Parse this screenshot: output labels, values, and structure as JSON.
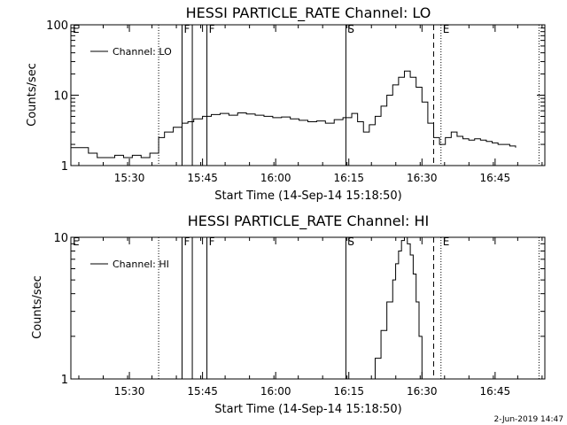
{
  "footer": {
    "date_stamp": "2-Jun-2019 14:47"
  },
  "chart_data": [
    {
      "type": "line",
      "title": "HESSI PARTICLE_RATE Channel: LO",
      "xlabel": "Start Time (14-Sep-14 15:18:50)",
      "ylabel": "Counts/sec",
      "yscale": "log",
      "ylim": [
        1,
        100
      ],
      "y_ticks": [
        {
          "value": 1,
          "label": "1"
        },
        {
          "value": 10,
          "label": "10"
        },
        {
          "value": 100,
          "label": "100"
        }
      ],
      "xlim_minutes": [
        15.3,
        16.92
      ],
      "x_ticks": [
        {
          "value": 15.5,
          "label": "15:30"
        },
        {
          "value": 15.75,
          "label": "15:45"
        },
        {
          "value": 16.0,
          "label": "16:00"
        },
        {
          "value": 16.25,
          "label": "16:15"
        },
        {
          "value": 16.5,
          "label": "16:30"
        },
        {
          "value": 16.75,
          "label": "16:45"
        }
      ],
      "legend": "Channel: LO",
      "markers": [
        {
          "label": "E",
          "time": 15.3,
          "style": "none"
        },
        {
          "label": "",
          "time": 15.6,
          "style": "dotted"
        },
        {
          "label": "F",
          "time": 15.68,
          "style": "solid"
        },
        {
          "label": "",
          "time": 15.715,
          "style": "solid"
        },
        {
          "label": "F",
          "time": 15.765,
          "style": "solid"
        },
        {
          "label": "S",
          "time": 16.24,
          "style": "solid"
        },
        {
          "label": "",
          "time": 16.54,
          "style": "dashed"
        },
        {
          "label": "E",
          "time": 16.565,
          "style": "dotted"
        },
        {
          "label": "",
          "time": 16.9,
          "style": "dotted"
        }
      ],
      "series": [
        {
          "name": "Channel: LO",
          "x": [
            15.3,
            15.33,
            15.36,
            15.39,
            15.42,
            15.45,
            15.48,
            15.51,
            15.54,
            15.57,
            15.6,
            15.62,
            15.65,
            15.68,
            15.7,
            15.72,
            15.75,
            15.78,
            15.81,
            15.84,
            15.87,
            15.9,
            15.93,
            15.96,
            15.99,
            16.02,
            16.05,
            16.08,
            16.11,
            16.14,
            16.17,
            16.2,
            16.23,
            16.26,
            16.28,
            16.3,
            16.32,
            16.34,
            16.36,
            16.38,
            16.4,
            16.42,
            16.44,
            16.46,
            16.48,
            16.5,
            16.52,
            16.54,
            16.56,
            16.58,
            16.6,
            16.62,
            16.64,
            16.66,
            16.68,
            16.7,
            16.72,
            16.74,
            16.76,
            16.78,
            16.8,
            16.82
          ],
          "values": [
            1.8,
            1.8,
            1.5,
            1.3,
            1.3,
            1.4,
            1.3,
            1.4,
            1.3,
            1.5,
            2.5,
            3.0,
            3.5,
            4.0,
            4.2,
            4.6,
            5.0,
            5.3,
            5.5,
            5.2,
            5.6,
            5.4,
            5.2,
            5.0,
            4.8,
            4.9,
            4.6,
            4.4,
            4.2,
            4.3,
            4.0,
            4.5,
            4.8,
            5.5,
            4.2,
            3.0,
            3.8,
            5.0,
            7.0,
            10.0,
            14.0,
            18.0,
            22.0,
            18.0,
            13.0,
            8.0,
            4.0,
            2.5,
            2.0,
            2.5,
            3.0,
            2.6,
            2.4,
            2.3,
            2.4,
            2.3,
            2.2,
            2.1,
            2.0,
            2.0,
            1.9,
            1.8
          ]
        }
      ]
    },
    {
      "type": "line",
      "title": "HESSI PARTICLE_RATE Channel: HI",
      "xlabel": "Start Time (14-Sep-14 15:18:50)",
      "ylabel": "Counts/sec",
      "yscale": "log",
      "ylim": [
        1,
        10
      ],
      "y_ticks": [
        {
          "value": 1,
          "label": "1"
        },
        {
          "value": 10,
          "label": "10"
        }
      ],
      "xlim_minutes": [
        15.3,
        16.92
      ],
      "x_ticks": [
        {
          "value": 15.5,
          "label": "15:30"
        },
        {
          "value": 15.75,
          "label": "15:45"
        },
        {
          "value": 16.0,
          "label": "16:00"
        },
        {
          "value": 16.25,
          "label": "16:15"
        },
        {
          "value": 16.5,
          "label": "16:30"
        },
        {
          "value": 16.75,
          "label": "16:45"
        }
      ],
      "legend": "Channel: HI",
      "markers": [
        {
          "label": "E",
          "time": 15.3,
          "style": "none"
        },
        {
          "label": "",
          "time": 15.6,
          "style": "dotted"
        },
        {
          "label": "F",
          "time": 15.68,
          "style": "solid"
        },
        {
          "label": "",
          "time": 15.715,
          "style": "solid"
        },
        {
          "label": "F",
          "time": 15.765,
          "style": "solid"
        },
        {
          "label": "S",
          "time": 16.24,
          "style": "solid"
        },
        {
          "label": "",
          "time": 16.54,
          "style": "dashed"
        },
        {
          "label": "E",
          "time": 16.565,
          "style": "dotted"
        },
        {
          "label": "",
          "time": 16.9,
          "style": "dotted"
        }
      ],
      "series": [
        {
          "name": "Channel: HI",
          "x": [
            16.32,
            16.34,
            16.36,
            16.38,
            16.4,
            16.41,
            16.42,
            16.43,
            16.44,
            16.45,
            16.46,
            16.47,
            16.48,
            16.49,
            16.5
          ],
          "values": [
            1.0,
            1.4,
            2.2,
            3.5,
            5.0,
            6.5,
            8.0,
            9.5,
            10.0,
            9.0,
            7.5,
            5.5,
            3.5,
            2.0,
            1.0
          ]
        }
      ]
    }
  ]
}
